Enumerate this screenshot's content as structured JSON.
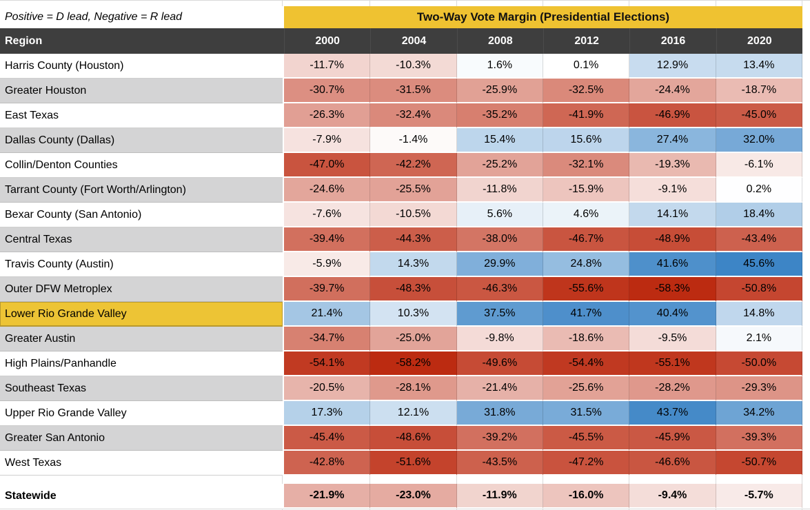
{
  "chart_data": {
    "type": "heatmap",
    "title": "Two-Way Vote Margin (Presidential Elections)",
    "note": "Positive = D lead, Negative = R lead",
    "region_header": "Region",
    "columns": [
      "2000",
      "2004",
      "2008",
      "2012",
      "2016",
      "2020"
    ],
    "unit": "%",
    "highlighted_region": "Lower Rio Grande Valley",
    "rows": [
      {
        "region": "Harris County (Houston)",
        "values": [
          -11.7,
          -10.3,
          1.6,
          0.1,
          12.9,
          13.4
        ],
        "highlight": false
      },
      {
        "region": "Greater Houston",
        "values": [
          -30.7,
          -31.5,
          -25.9,
          -32.5,
          -24.4,
          -18.7
        ],
        "highlight": false
      },
      {
        "region": "East Texas",
        "values": [
          -26.3,
          -32.4,
          -35.2,
          -41.9,
          -46.9,
          -45.0
        ],
        "highlight": false
      },
      {
        "region": "Dallas County (Dallas)",
        "values": [
          -7.9,
          -1.4,
          15.4,
          15.6,
          27.4,
          32.0
        ],
        "highlight": false
      },
      {
        "region": "Collin/Denton Counties",
        "values": [
          -47.0,
          -42.2,
          -25.2,
          -32.1,
          -19.3,
          -6.1
        ],
        "highlight": false
      },
      {
        "region": "Tarrant County (Fort Worth/Arlington)",
        "values": [
          -24.6,
          -25.5,
          -11.8,
          -15.9,
          -9.1,
          0.2
        ],
        "highlight": false
      },
      {
        "region": "Bexar County (San Antonio)",
        "values": [
          -7.6,
          -10.5,
          5.6,
          4.6,
          14.1,
          18.4
        ],
        "highlight": false
      },
      {
        "region": "Central Texas",
        "values": [
          -39.4,
          -44.3,
          -38.0,
          -46.7,
          -48.9,
          -43.4
        ],
        "highlight": false
      },
      {
        "region": "Travis County (Austin)",
        "values": [
          -5.9,
          14.3,
          29.9,
          24.8,
          41.6,
          45.6
        ],
        "highlight": false
      },
      {
        "region": "Outer DFW Metroplex",
        "values": [
          -39.7,
          -48.3,
          -46.3,
          -55.6,
          -58.3,
          -50.8
        ],
        "highlight": false
      },
      {
        "region": "Lower Rio Grande Valley",
        "values": [
          21.4,
          10.3,
          37.5,
          41.7,
          40.4,
          14.8
        ],
        "highlight": true
      },
      {
        "region": "Greater Austin",
        "values": [
          -34.7,
          -25.0,
          -9.8,
          -18.6,
          -9.5,
          2.1
        ],
        "highlight": false
      },
      {
        "region": "High Plains/Panhandle",
        "values": [
          -54.1,
          -58.2,
          -49.6,
          -54.4,
          -55.1,
          -50.0
        ],
        "highlight": false
      },
      {
        "region": "Southeast Texas",
        "values": [
          -20.5,
          -28.1,
          -21.4,
          -25.6,
          -28.2,
          -29.3
        ],
        "highlight": false
      },
      {
        "region": "Upper Rio Grande Valley",
        "values": [
          17.3,
          12.1,
          31.8,
          31.5,
          43.7,
          34.2
        ],
        "highlight": false
      },
      {
        "region": "Greater San Antonio",
        "values": [
          -45.4,
          -48.6,
          -39.2,
          -45.5,
          -45.9,
          -39.3
        ],
        "highlight": false
      },
      {
        "region": "West Texas",
        "values": [
          -42.8,
          -51.6,
          -43.5,
          -47.2,
          -46.6,
          -50.7
        ],
        "highlight": false
      }
    ],
    "statewide": {
      "region": "Statewide",
      "values": [
        -21.9,
        -23.0,
        -11.9,
        -16.0,
        -9.4,
        -5.7
      ]
    }
  },
  "style": {
    "title_band_bg": "#EFC231",
    "highlight_bg": "#EDC435",
    "highlight_border": "#B8992E",
    "header_bg": "#3E3E3E",
    "header_text": "#FFFFFF",
    "stripe_bg": "#D4D4D5",
    "gridline": "#D9D9D9",
    "scale_negative_end": "#BC2B11",
    "scale_positive_end": "#3D85C6",
    "scale_negative_domain": 58.3,
    "scale_positive_domain": 45.6,
    "scale_midpoint": "#FFFFFF"
  }
}
